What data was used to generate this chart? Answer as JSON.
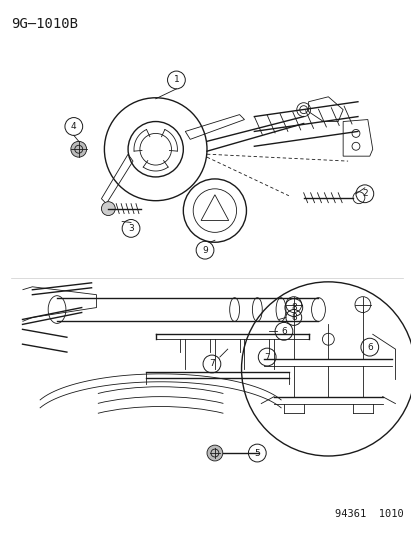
{
  "title": "9G–1010B",
  "footer": "94361  1010",
  "bg_color": "#ffffff",
  "line_color": "#1a1a1a",
  "title_fontsize": 10,
  "footer_fontsize": 7.5,
  "fig_width": 4.14,
  "fig_height": 5.33
}
